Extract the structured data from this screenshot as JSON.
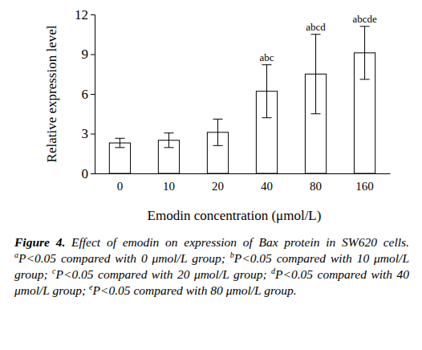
{
  "chart_data": {
    "type": "bar",
    "x_label": "Emodin concentration (μmol/L)",
    "y_label": "Relative expression level",
    "categories": [
      "0",
      "10",
      "20",
      "40",
      "80",
      "160"
    ],
    "values": [
      2.3,
      2.5,
      3.1,
      6.2,
      7.5,
      9.1
    ],
    "errors": [
      0.35,
      0.55,
      1.0,
      2.0,
      3.0,
      2.0
    ],
    "annotations": [
      null,
      null,
      null,
      "abc",
      "abcd",
      "abcde"
    ],
    "color": "#ffffff",
    "ylim": [
      0,
      12
    ],
    "yticks": [
      0,
      3,
      6,
      9,
      12
    ],
    "grid": false,
    "caption": {
      "label": "Figure 4.",
      "text": "Effect of emodin on expression of Bax protein in SW620 cells.",
      "notes": [
        {
          "sup": "a",
          "text": "P<0.05 compared with 0 μmol/L group;"
        },
        {
          "sup": "b",
          "text": "P<0.05 compared with 10 μmol/L group;"
        },
        {
          "sup": "c",
          "text": "P<0.05 compared with 20 μmol/L group;"
        },
        {
          "sup": "d",
          "text": "P<0.05 compared with 40 μmol/L group;"
        },
        {
          "sup": "e",
          "text": "P<0.05 compared with 80 μmol/L group."
        }
      ]
    }
  }
}
